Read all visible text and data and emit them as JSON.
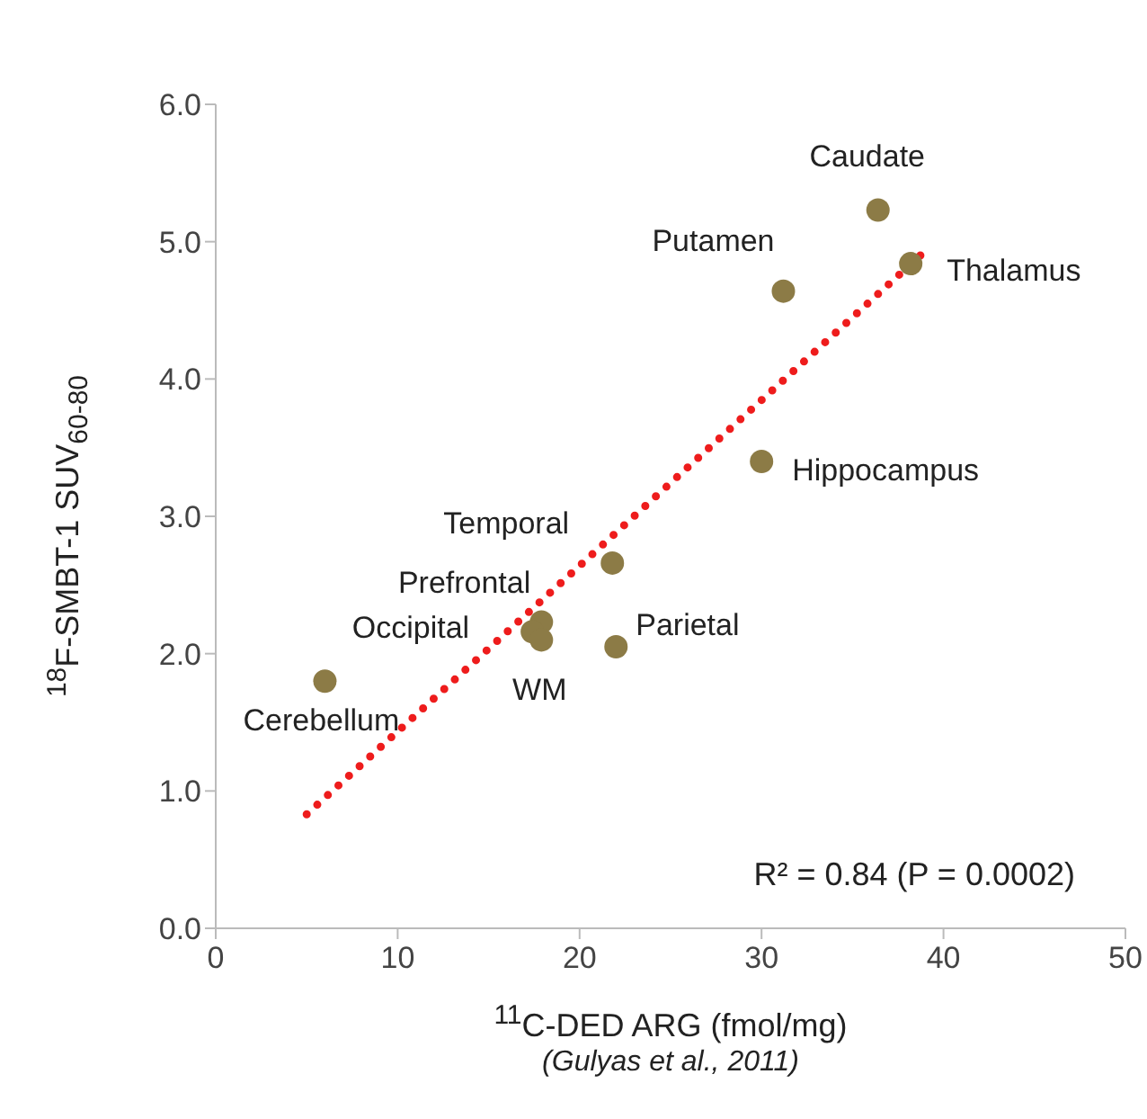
{
  "chart_data": {
    "type": "scatter",
    "xlabel": "$^{11}$C-DED ARG (fmol/mg)",
    "ylabel": "$^{18}$F-SMBT-1 SUV$_{60-80}$",
    "annotations": [
      "R² = 0.84 (P = 0.0002)",
      "(Gulyas et al., 2011)"
    ],
    "xlim": [
      0,
      50
    ],
    "xticks": [
      0,
      10,
      20,
      30,
      40,
      50
    ],
    "ylim": [
      0,
      6
    ],
    "yticks": [
      {
        "value": 0,
        "label": "0.0"
      },
      {
        "value": 1,
        "label": "1.0"
      },
      {
        "value": 2,
        "label": "2.0"
      },
      {
        "value": 3,
        "label": "3.0"
      },
      {
        "value": 4,
        "label": "4.0"
      },
      {
        "value": 5,
        "label": "5.0"
      },
      {
        "value": 6,
        "label": "6.0"
      }
    ],
    "grid": false,
    "legend": false,
    "marker": "circle",
    "series": [
      {
        "color": "#8c7b46",
        "x": [
          36.4,
          38.2,
          31.2,
          30.0,
          21.8,
          17.9,
          17.4,
          17.9,
          22.0,
          6.0
        ],
        "values": [
          5.23,
          4.84,
          4.64,
          3.4,
          2.66,
          2.23,
          2.16,
          2.1,
          2.05,
          1.8
        ],
        "value_labels": [
          "Caudate",
          "Thalamus",
          "Putamen",
          "Hippocampus",
          "Temporal",
          "Prefrontal",
          "Occipital",
          "WM",
          "Parietal",
          "Cerebellum"
        ]
      },
      {
        "type": "line",
        "color": "#ee1c1c",
        "line_style": "dotted",
        "marker": "none",
        "x": [
          5.0,
          38.9
        ],
        "values": [
          0.83,
          4.92
        ]
      }
    ]
  }
}
